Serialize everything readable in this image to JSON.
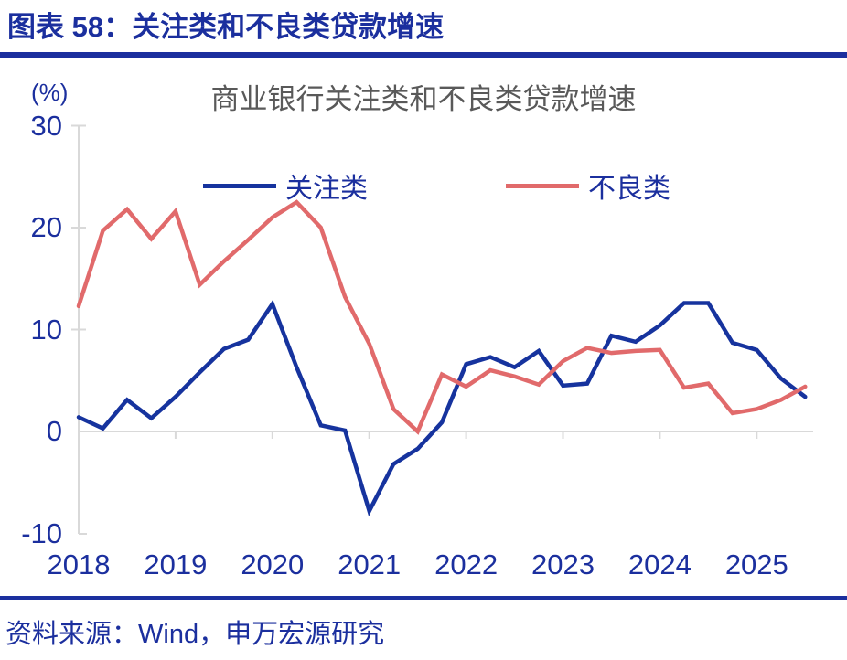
{
  "header": {
    "title": "图表 58：关注类和不良类贷款增速"
  },
  "chart": {
    "unit_label": "(%)",
    "title": "商业银行关注类和不良类贷款增速"
  },
  "footer": {
    "source": "资料来源：Wind，申万宏源研究"
  },
  "colors": {
    "navy_text": "#1B2F9E",
    "series_blue": "#16339E",
    "series_red": "#E16A6B",
    "title_gray": "#595959",
    "axis_gray": "#D9D9D9"
  },
  "chart_data": {
    "type": "line",
    "title": "商业银行关注类和不良类贷款增速",
    "ylabel": "(%)",
    "ylim": [
      -10,
      30
    ],
    "yticks": [
      30,
      20,
      10,
      0,
      -10
    ],
    "x_tick_labels": [
      "2018",
      "2019",
      "2020",
      "2021",
      "2022",
      "2023",
      "2024",
      "2025"
    ],
    "x": [
      "2018Q1",
      "2018Q2",
      "2018Q3",
      "2018Q4",
      "2019Q1",
      "2019Q2",
      "2019Q3",
      "2019Q4",
      "2020Q1",
      "2020Q2",
      "2020Q3",
      "2020Q4",
      "2021Q1",
      "2021Q2",
      "2021Q3",
      "2021Q4",
      "2022Q1",
      "2022Q2",
      "2022Q3",
      "2022Q4",
      "2023Q1",
      "2023Q2",
      "2023Q3",
      "2023Q4",
      "2024Q1",
      "2024Q2",
      "2024Q3",
      "2024Q4",
      "2025Q1",
      "2025Q2",
      "2025Q3"
    ],
    "legend_position": "top",
    "grid": false,
    "series": [
      {
        "name": "关注类",
        "color": "#16339E",
        "values": [
          1.4,
          0.3,
          3.1,
          1.3,
          3.4,
          5.8,
          8.1,
          9.0,
          12.5,
          6.3,
          0.6,
          0.1,
          -7.8,
          -3.2,
          -1.7,
          0.9,
          6.6,
          7.3,
          6.3,
          7.9,
          4.5,
          4.7,
          9.4,
          8.8,
          10.4,
          12.6,
          12.6,
          8.7,
          8.0,
          5.2,
          3.4
        ]
      },
      {
        "name": "不良类",
        "color": "#E16A6B",
        "values": [
          12.3,
          19.7,
          21.8,
          18.9,
          21.6,
          14.4,
          16.7,
          18.8,
          21.0,
          22.5,
          20.0,
          13.2,
          8.6,
          2.2,
          0.0,
          5.6,
          4.4,
          6.0,
          5.4,
          4.6,
          6.9,
          8.2,
          7.7,
          7.9,
          8.0,
          4.3,
          4.7,
          1.8,
          2.2,
          3.1,
          4.4
        ]
      }
    ]
  }
}
